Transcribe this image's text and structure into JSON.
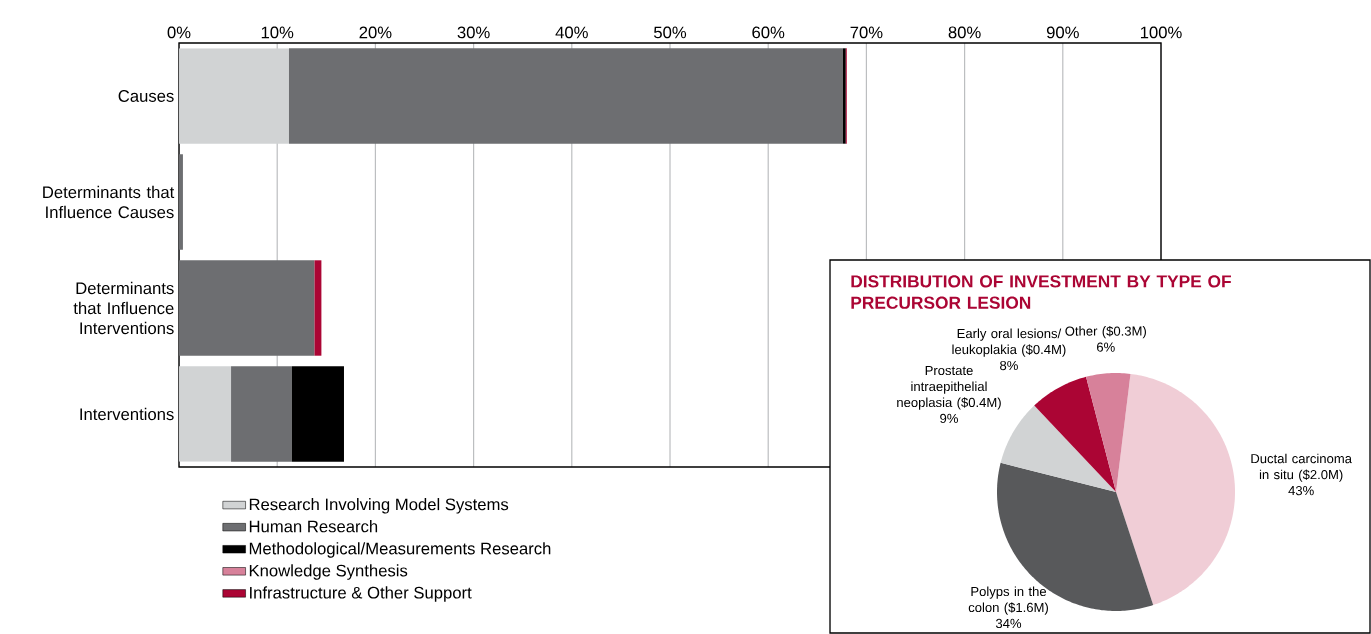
{
  "chart_data": [
    {
      "type": "bar",
      "orientation": "horizontal",
      "stacked": true,
      "categories": [
        "Causes",
        "Determinants that Influence Causes",
        "Determinants that Influence Interventions",
        "Interventions"
      ],
      "series": [
        {
          "name": "Research Involving Model Systems",
          "color": "#d1d3d4",
          "values": [
            11.2,
            null,
            null,
            5.3
          ]
        },
        {
          "name": "Human Research",
          "color": "#6d6e71",
          "values": [
            56.4,
            0.4,
            13.8,
            6.2
          ]
        },
        {
          "name": "Methodological/Measurements Research",
          "color": "#000000",
          "values": [
            0.3,
            null,
            null,
            5.3
          ]
        },
        {
          "name": "Knowledge Synthesis",
          "color": "#d7819a",
          "values": [
            null,
            null,
            null,
            null
          ]
        },
        {
          "name": "Infrastructure & Other Support",
          "color": "#ab0534",
          "values": [
            0.1,
            null,
            0.7,
            null
          ]
        }
      ],
      "xlim": [
        0,
        100
      ],
      "xticks": [
        {
          "value": 0,
          "label": "0%"
        },
        {
          "value": 10,
          "label": "10%"
        },
        {
          "value": 20,
          "label": "20%"
        },
        {
          "value": 30,
          "label": "30%"
        },
        {
          "value": 40,
          "label": "40%"
        },
        {
          "value": 50,
          "label": "50%"
        },
        {
          "value": 60,
          "label": "60%"
        },
        {
          "value": 70,
          "label": "70%"
        },
        {
          "value": 80,
          "label": "80%"
        },
        {
          "value": 90,
          "label": "90%"
        },
        {
          "value": 100,
          "label": "100%"
        }
      ],
      "grid": "x",
      "legend": "bottom"
    },
    {
      "type": "pie",
      "title": "DISTRIBUTION OF INVESTMENT BY TYPE OF PRECURSOR LESION",
      "categories": [
        "Ductal carcinoma in situ ($2.0M)",
        "Polyps in the colon ($1.6M)",
        "Prostate intraepithelial neoplasia ($0.4M)",
        "Early oral lesions/ leukoplakia ($0.4M)",
        "Other ($0.3M)"
      ],
      "values": [
        43,
        34,
        9,
        8,
        6
      ],
      "value_labels": [
        "43%",
        "34%",
        "9%",
        "8%",
        "6%"
      ],
      "colors": [
        "#f0cdd6",
        "#58595b",
        "#d1d3d4",
        "#ab0534",
        "#d7819a"
      ]
    }
  ]
}
